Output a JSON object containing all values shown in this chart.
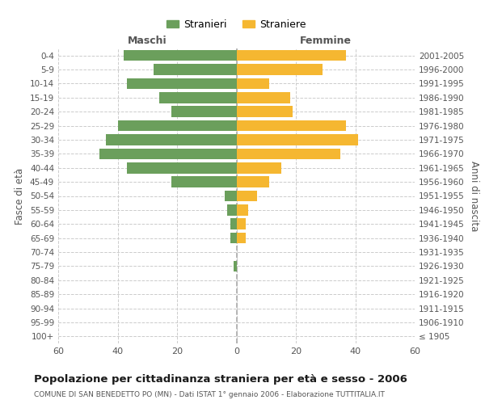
{
  "age_groups": [
    "0-4",
    "5-9",
    "10-14",
    "15-19",
    "20-24",
    "25-29",
    "30-34",
    "35-39",
    "40-44",
    "45-49",
    "50-54",
    "55-59",
    "60-64",
    "65-69",
    "70-74",
    "75-79",
    "80-84",
    "85-89",
    "90-94",
    "95-99",
    "100+"
  ],
  "birth_years": [
    "2001-2005",
    "1996-2000",
    "1991-1995",
    "1986-1990",
    "1981-1985",
    "1976-1980",
    "1971-1975",
    "1966-1970",
    "1961-1965",
    "1956-1960",
    "1951-1955",
    "1946-1950",
    "1941-1945",
    "1936-1940",
    "1931-1935",
    "1926-1930",
    "1921-1925",
    "1916-1920",
    "1911-1915",
    "1906-1910",
    "≤ 1905"
  ],
  "males": [
    38,
    28,
    37,
    26,
    22,
    40,
    44,
    46,
    37,
    22,
    4,
    3,
    2,
    2,
    0,
    1,
    0,
    0,
    0,
    0,
    0
  ],
  "females": [
    37,
    29,
    11,
    18,
    19,
    37,
    41,
    35,
    15,
    11,
    7,
    4,
    3,
    3,
    0,
    0,
    0,
    0,
    0,
    0,
    0
  ],
  "male_color": "#6b9f5c",
  "female_color": "#f5b731",
  "title": "Popolazione per cittadinanza straniera per età e sesso - 2006",
  "subtitle": "COMUNE DI SAN BENEDETTO PO (MN) - Dati ISTAT 1° gennaio 2006 - Elaborazione TUTTITALIA.IT",
  "xlabel_left": "Maschi",
  "xlabel_right": "Femmine",
  "ylabel_left": "Fasce di età",
  "ylabel_right": "Anni di nascita",
  "legend_males": "Stranieri",
  "legend_females": "Straniere",
  "xlim": 60,
  "background_color": "#ffffff",
  "grid_color": "#cccccc"
}
